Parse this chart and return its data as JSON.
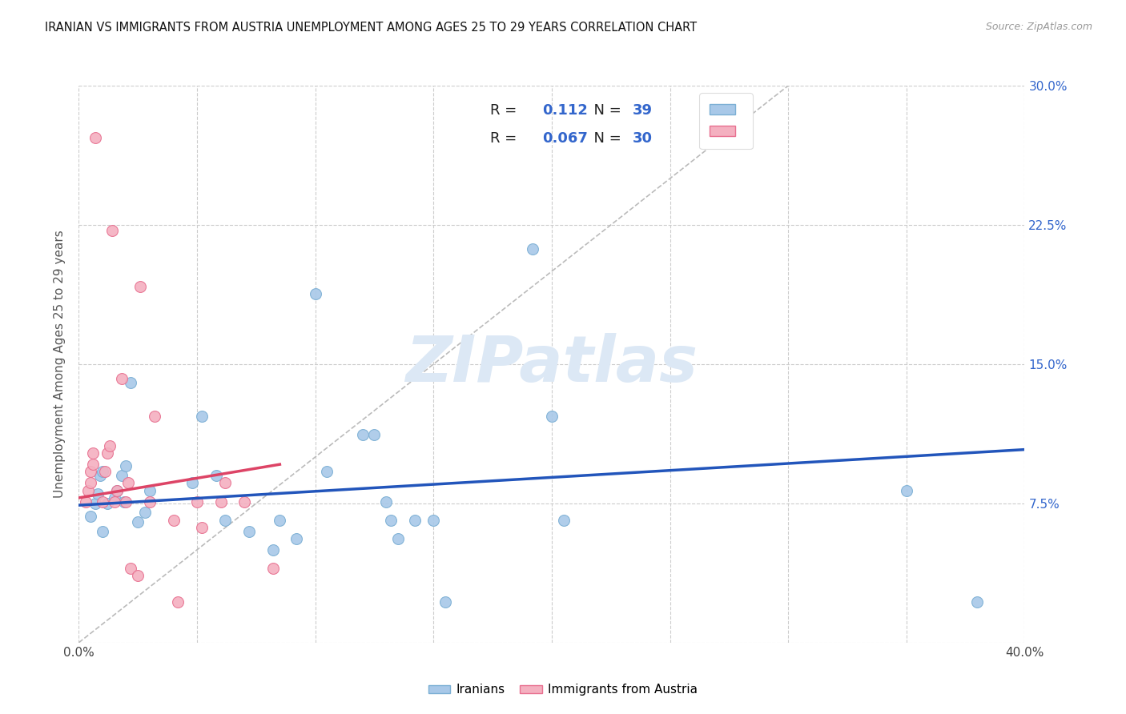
{
  "title": "IRANIAN VS IMMIGRANTS FROM AUSTRIA UNEMPLOYMENT AMONG AGES 25 TO 29 YEARS CORRELATION CHART",
  "source": "Source: ZipAtlas.com",
  "ylabel": "Unemployment Among Ages 25 to 29 years",
  "xlim": [
    0,
    0.4
  ],
  "ylim": [
    0,
    0.3
  ],
  "xticks": [
    0.0,
    0.05,
    0.1,
    0.15,
    0.2,
    0.25,
    0.3,
    0.35,
    0.4
  ],
  "yticks": [
    0.0,
    0.075,
    0.15,
    0.225,
    0.3
  ],
  "right_yticklabels": [
    "",
    "7.5%",
    "15.0%",
    "22.5%",
    "30.0%"
  ],
  "iranian_x": [
    0.005,
    0.007,
    0.008,
    0.009,
    0.01,
    0.01,
    0.012,
    0.015,
    0.016,
    0.018,
    0.019,
    0.02,
    0.022,
    0.025,
    0.028,
    0.03,
    0.048,
    0.052,
    0.058,
    0.062,
    0.072,
    0.082,
    0.085,
    0.092,
    0.1,
    0.105,
    0.12,
    0.125,
    0.13,
    0.132,
    0.135,
    0.142,
    0.15,
    0.155,
    0.192,
    0.2,
    0.205,
    0.35,
    0.38
  ],
  "iranian_y": [
    0.068,
    0.075,
    0.08,
    0.09,
    0.092,
    0.06,
    0.075,
    0.078,
    0.082,
    0.09,
    0.076,
    0.095,
    0.14,
    0.065,
    0.07,
    0.082,
    0.086,
    0.122,
    0.09,
    0.066,
    0.06,
    0.05,
    0.066,
    0.056,
    0.188,
    0.092,
    0.112,
    0.112,
    0.076,
    0.066,
    0.056,
    0.066,
    0.066,
    0.022,
    0.212,
    0.122,
    0.066,
    0.082,
    0.022
  ],
  "austria_x": [
    0.003,
    0.004,
    0.005,
    0.005,
    0.006,
    0.006,
    0.007,
    0.01,
    0.011,
    0.012,
    0.013,
    0.014,
    0.015,
    0.016,
    0.018,
    0.02,
    0.021,
    0.022,
    0.025,
    0.026,
    0.03,
    0.032,
    0.04,
    0.042,
    0.05,
    0.052,
    0.06,
    0.062,
    0.07,
    0.082
  ],
  "austria_y": [
    0.076,
    0.082,
    0.086,
    0.092,
    0.096,
    0.102,
    0.272,
    0.076,
    0.092,
    0.102,
    0.106,
    0.222,
    0.076,
    0.082,
    0.142,
    0.076,
    0.086,
    0.04,
    0.036,
    0.192,
    0.076,
    0.122,
    0.066,
    0.022,
    0.076,
    0.062,
    0.076,
    0.086,
    0.076,
    0.04
  ],
  "blue_line_x": [
    0.0,
    0.4
  ],
  "blue_line_y": [
    0.074,
    0.104
  ],
  "pink_line_x": [
    0.0,
    0.085
  ],
  "pink_line_y": [
    0.078,
    0.096
  ],
  "ref_line_x": [
    0.0,
    0.3
  ],
  "ref_line_y": [
    0.0,
    0.3
  ],
  "dot_size": 100,
  "blue_color": "#a8c8e8",
  "blue_edge": "#7bafd4",
  "pink_color": "#f4b0c0",
  "pink_edge": "#e87090",
  "blue_trend_color": "#2255bb",
  "pink_trend_color": "#dd4466",
  "ref_line_color": "#bbbbbb",
  "watermark": "ZIPatlas",
  "watermark_color": "#dce8f5",
  "background_color": "#ffffff",
  "grid_color": "#cccccc",
  "legend_R1": "0.112",
  "legend_N1": "39",
  "legend_R2": "0.067",
  "legend_N2": "30",
  "legend_text_color": "#222222",
  "legend_value_color": "#3366cc"
}
